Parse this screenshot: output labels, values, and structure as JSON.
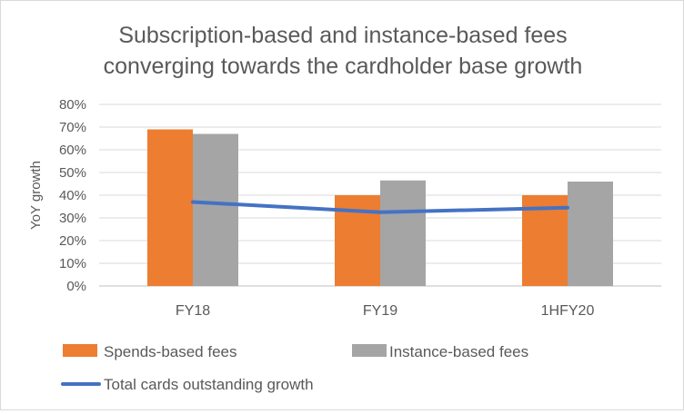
{
  "chart_data": {
    "type": "bar",
    "title_lines": [
      "Subscription-based and instance-based fees",
      "converging towards the cardholder base growth"
    ],
    "ylabel": "YoY growth",
    "xlabel": "",
    "categories": [
      "FY18",
      "FY19",
      "1HFY20"
    ],
    "ylim": [
      0,
      80
    ],
    "yticks": [
      0,
      10,
      20,
      30,
      40,
      50,
      60,
      70,
      80
    ],
    "ytick_labels": [
      "0%",
      "10%",
      "20%",
      "30%",
      "40%",
      "50%",
      "60%",
      "70%",
      "80%"
    ],
    "grid": true,
    "legend_position": "bottom",
    "series": [
      {
        "name": "Spends-based fees",
        "kind": "bar",
        "color": "#ED7D31",
        "values": [
          69,
          40,
          40
        ]
      },
      {
        "name": "Instance-based fees",
        "kind": "bar",
        "color": "#A5A5A5",
        "values": [
          67,
          46.5,
          46
        ]
      },
      {
        "name": "Total cards outstanding growth",
        "kind": "line",
        "color": "#4472C4",
        "values": [
          37,
          32.5,
          34.5
        ]
      }
    ]
  }
}
